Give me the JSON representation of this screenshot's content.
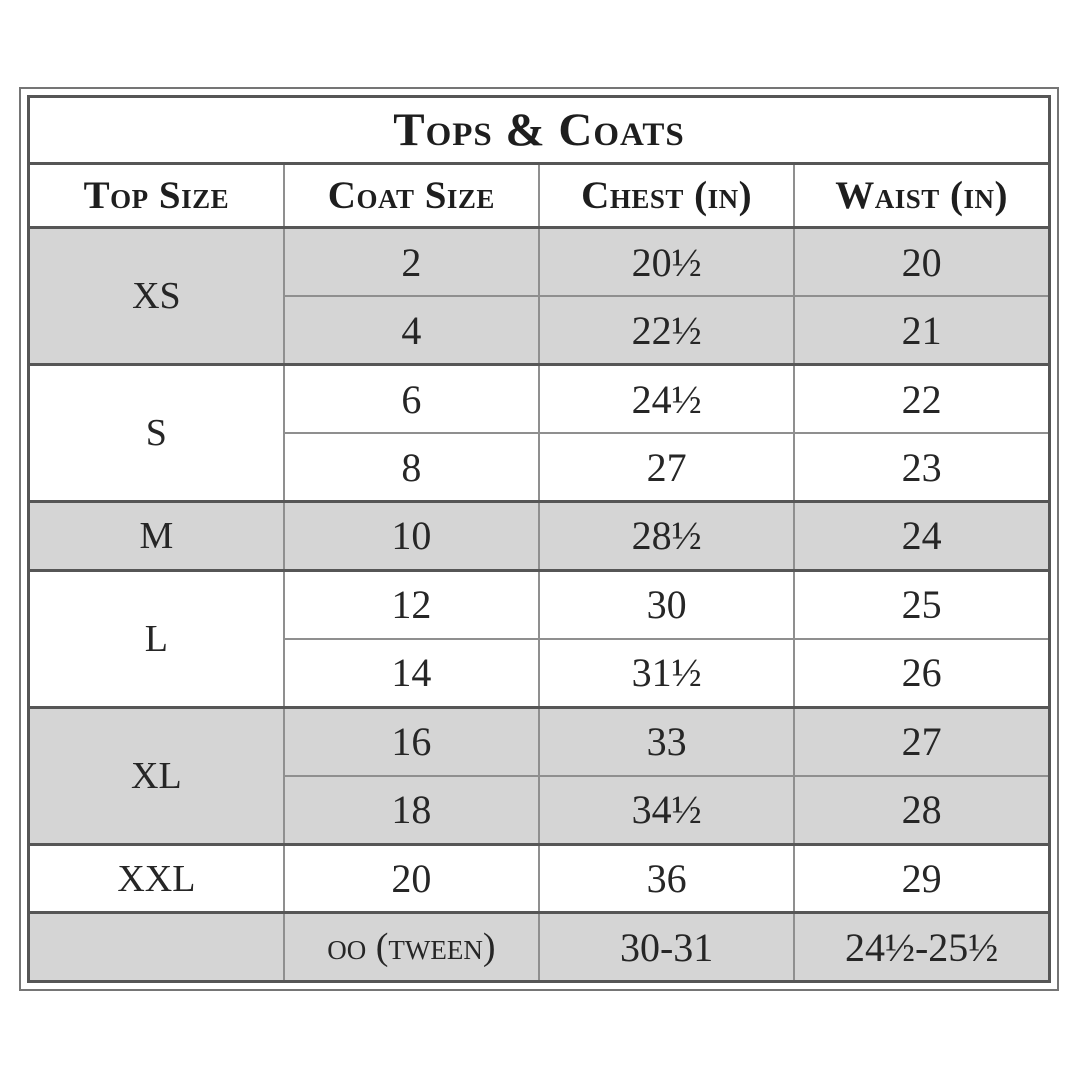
{
  "page": {
    "background": "#ffffff"
  },
  "table": {
    "title": "Tops & Coats",
    "headers": [
      "Top Size",
      "Coat Size",
      "Chest (in)",
      "Waist (in)"
    ],
    "colors": {
      "shaded_row": "#d5d5d5",
      "frame_line": "#565656",
      "grid_line": "#8f8f8f",
      "text": "#262626"
    },
    "groups": [
      {
        "top_size": "XS",
        "shaded": true,
        "rows": [
          {
            "coat": "2",
            "chest": "20½",
            "waist": "20"
          },
          {
            "coat": "4",
            "chest": "22½",
            "waist": "21"
          }
        ]
      },
      {
        "top_size": "S",
        "shaded": false,
        "rows": [
          {
            "coat": "6",
            "chest": "24½",
            "waist": "22"
          },
          {
            "coat": "8",
            "chest": "27",
            "waist": "23"
          }
        ]
      },
      {
        "top_size": "M",
        "shaded": true,
        "rows": [
          {
            "coat": "10",
            "chest": "28½",
            "waist": "24"
          }
        ]
      },
      {
        "top_size": "L",
        "shaded": false,
        "rows": [
          {
            "coat": "12",
            "chest": "30",
            "waist": "25"
          },
          {
            "coat": "14",
            "chest": "31½",
            "waist": "26"
          }
        ]
      },
      {
        "top_size": "XL",
        "shaded": true,
        "rows": [
          {
            "coat": "16",
            "chest": "33",
            "waist": "27"
          },
          {
            "coat": "18",
            "chest": "34½",
            "waist": "28"
          }
        ]
      },
      {
        "top_size": "XXL",
        "shaded": false,
        "rows": [
          {
            "coat": "20",
            "chest": "36",
            "waist": "29"
          }
        ]
      },
      {
        "top_size": "",
        "shaded": true,
        "rows": [
          {
            "coat": "oo (tween)",
            "chest": "30-31",
            "waist": "24½-25½"
          }
        ]
      }
    ]
  }
}
